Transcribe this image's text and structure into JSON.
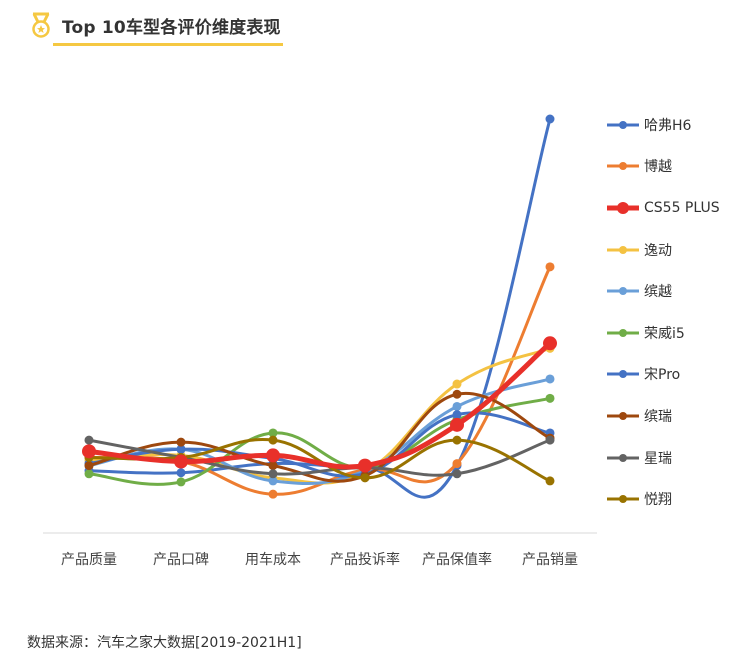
{
  "header": {
    "title": "Top 10车型各评价维度表现",
    "icon": "medal-icon",
    "accent": "#F5C842"
  },
  "source": "数据来源：汽车之家大数据[2019-2021H1]",
  "chart_data": {
    "type": "line",
    "title": "Top 10车型各评价维度表现",
    "xlabel": "",
    "ylabel": "",
    "grid": false,
    "legend_position": "right",
    "categories": [
      "产品质量",
      "产品口碑",
      "用车成本",
      "产品投诉率",
      "产品保值率",
      "产品销量"
    ],
    "note": "Relative index values estimated from pixel positions (no y-axis shown); higher = better",
    "series": [
      {
        "name": "哈弗H6",
        "color": "#4472C4",
        "values": [
          1.5,
          1.3,
          2.2,
          1.8,
          2.0,
          36.0
        ]
      },
      {
        "name": "博越",
        "color": "#ED7D31",
        "values": [
          2.8,
          2.4,
          -0.8,
          1.6,
          2.2,
          21.5
        ]
      },
      {
        "name": "CS55 PLUS",
        "color": "#E8302A",
        "values": [
          3.4,
          2.4,
          3.0,
          2.0,
          6.0,
          14.0
        ]
      },
      {
        "name": "逸动",
        "color": "#F4C242",
        "values": [
          2.5,
          3.0,
          0.8,
          1.4,
          10.0,
          13.5
        ]
      },
      {
        "name": "缤越",
        "color": "#6A9FD8",
        "values": [
          2.0,
          3.6,
          0.5,
          1.5,
          7.8,
          10.5
        ]
      },
      {
        "name": "荣威i5",
        "color": "#70AD47",
        "values": [
          1.2,
          0.4,
          5.2,
          1.8,
          6.5,
          8.6
        ]
      },
      {
        "name": "宋Pro",
        "color": "#4472C4",
        "values": [
          2.2,
          3.6,
          2.7,
          1.2,
          7.0,
          5.2
        ]
      },
      {
        "name": "缤瑞",
        "color": "#9E480E",
        "values": [
          2.0,
          4.3,
          2.0,
          1.0,
          9.0,
          4.7
        ]
      },
      {
        "name": "星瑞",
        "color": "#636363",
        "values": [
          4.5,
          2.8,
          1.2,
          1.8,
          1.2,
          4.5
        ]
      },
      {
        "name": "悦翔",
        "color": "#997300",
        "values": [
          2.8,
          2.8,
          4.5,
          0.8,
          4.5,
          0.5
        ]
      }
    ]
  }
}
